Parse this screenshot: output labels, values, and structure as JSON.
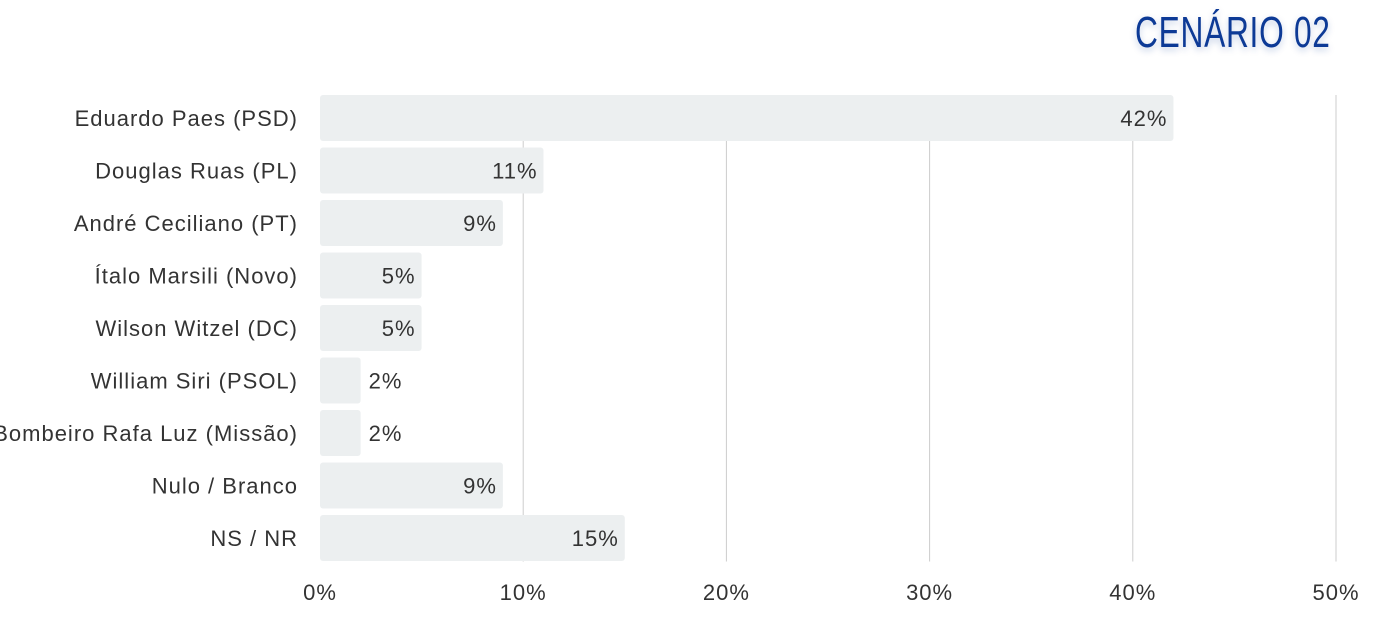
{
  "chart_data": {
    "type": "bar",
    "orientation": "horizontal",
    "title": "CENÁRIO 02",
    "categories": [
      "Eduardo Paes (PSD)",
      "Douglas Ruas (PL)",
      "André Ceciliano (PT)",
      "Ítalo Marsili (Novo)",
      "Wilson Witzel (DC)",
      "William Siri (PSOL)",
      "Bombeiro Rafa Luz (Missão)",
      "Nulo / Branco",
      "NS / NR"
    ],
    "values": [
      42,
      11,
      9,
      5,
      5,
      2,
      2,
      9,
      15
    ],
    "value_labels": [
      "42%",
      "11%",
      "9%",
      "5%",
      "5%",
      "2%",
      "2%",
      "9%",
      "15%"
    ],
    "xlim": [
      0,
      50
    ],
    "xticks": [
      "0%",
      "10%",
      "20%",
      "30%",
      "40%",
      "50%"
    ],
    "grid": "vertical",
    "xlabel": "",
    "ylabel": "",
    "colors": {
      "bar": "#eceff0",
      "title": "#0d3a96",
      "grid": "#cccccc",
      "text": "#333333"
    }
  }
}
